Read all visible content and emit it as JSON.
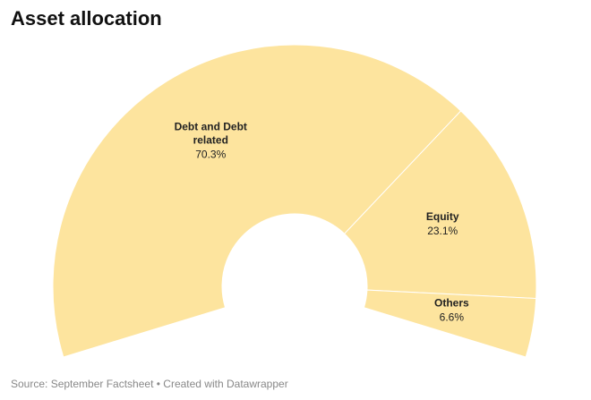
{
  "chart_data": {
    "type": "pie",
    "title": "Asset allocation",
    "categories": [
      "Debt and Debt related",
      "Equity",
      "Others"
    ],
    "values": [
      70.3,
      23.1,
      6.6
    ],
    "value_labels": [
      "70.3%",
      "23.1%",
      "6.6%"
    ],
    "color": "#fde49e",
    "source": "Source: September Factsheet • Created with Datawrapper"
  }
}
